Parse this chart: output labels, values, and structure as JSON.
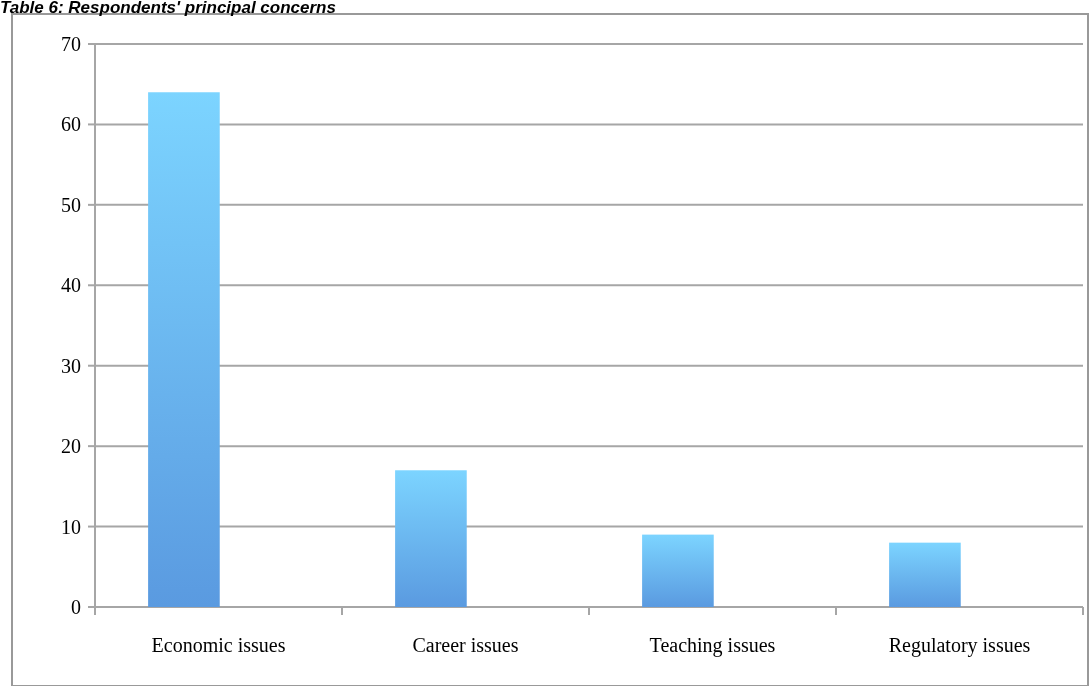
{
  "chart_data": {
    "type": "bar",
    "title": "Table 6: Respondents' principal concerns",
    "categories": [
      "Economic issues",
      "Career issues",
      "Teaching issues",
      "Regulatory issues"
    ],
    "values": [
      64,
      17,
      9,
      8
    ],
    "color": "#5a9ae0",
    "ylim": [
      0,
      70
    ],
    "yticks": [
      0,
      10,
      20,
      30,
      40,
      50,
      60,
      70
    ],
    "grid": "y"
  }
}
